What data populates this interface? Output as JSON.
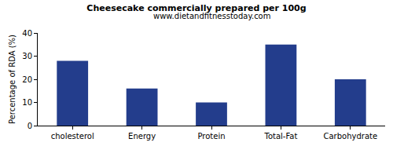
{
  "chart_data": {
    "type": "bar",
    "title": "Cheesecake commercially prepared per 100g",
    "subtitle": "www.dietandfitnesstoday.com",
    "y_label": "Percentage of RDA (%)",
    "categories": [
      "cholesterol",
      "Energy",
      "Protein",
      "Total-Fat",
      "Carbohydrate"
    ],
    "values": [
      28,
      16,
      10,
      35,
      20
    ],
    "color": "#233d8c",
    "ylim": [
      0,
      40
    ],
    "yticks": [
      0,
      10,
      20,
      30,
      40
    ],
    "grid": false
  }
}
